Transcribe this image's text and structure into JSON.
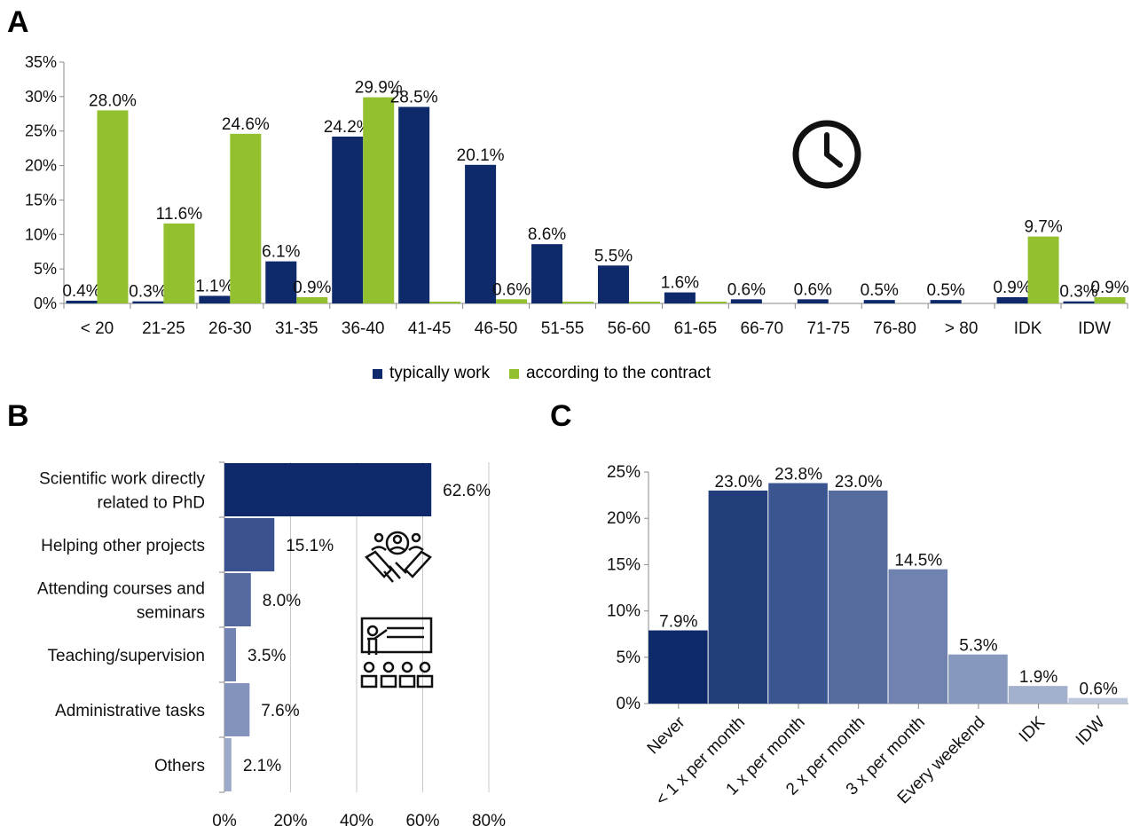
{
  "panels": {
    "a": "A",
    "b": "B",
    "c": "C"
  },
  "colors": {
    "navy": "#0e2a6b",
    "green": "#92c02e"
  },
  "chart_data": [
    {
      "id": "A",
      "type": "bar",
      "categories": [
        "< 20",
        "21-25",
        "26-30",
        "31-35",
        "36-40",
        "41-45",
        "46-50",
        "51-55",
        "56-60",
        "61-65",
        "66-70",
        "71-75",
        "76-80",
        "> 80",
        "IDK",
        "IDW"
      ],
      "series": [
        {
          "name": "typically work",
          "color": "#0e2a6b",
          "values": [
            0.4,
            0.3,
            1.1,
            6.1,
            24.2,
            28.5,
            20.1,
            8.6,
            5.5,
            1.6,
            0.6,
            0.6,
            0.5,
            0.5,
            0.9,
            0.3
          ],
          "labels": [
            "0.4%",
            "0.3%",
            "1.1%",
            "6.1%",
            "24.2%",
            "28.5%",
            "20.1%",
            "8.6%",
            "5.5%",
            "1.6%",
            "0.6%",
            "0.6%",
            "0.5%",
            "0.5%",
            "0.9%",
            "0.3%"
          ]
        },
        {
          "name": "according to the contract",
          "color": "#92c02e",
          "values": [
            28.0,
            11.6,
            24.6,
            0.9,
            29.9,
            0.2,
            0.6,
            0.2,
            0.2,
            0.2,
            0,
            0,
            0,
            0,
            9.7,
            0.9
          ],
          "labels": [
            "28.0%",
            "11.6%",
            "24.6%",
            "0.9%",
            "29.9%",
            "",
            "0.6%",
            "",
            "",
            "",
            "",
            "",
            "",
            "",
            "9.7%",
            "0.9%"
          ]
        }
      ],
      "yticks": [
        "0%",
        "5%",
        "10%",
        "15%",
        "20%",
        "25%",
        "30%",
        "35%"
      ],
      "ylim": [
        0,
        35
      ],
      "icon": "clock-icon"
    },
    {
      "id": "B",
      "type": "bar",
      "orientation": "horizontal",
      "categories": [
        [
          "Scientific work directly",
          "related to PhD"
        ],
        [
          "Helping other projects"
        ],
        [
          "Attending courses and",
          "seminars"
        ],
        [
          "Teaching/supervision"
        ],
        [
          "Administrative tasks"
        ],
        [
          "Others"
        ]
      ],
      "values": [
        62.6,
        15.1,
        8.0,
        3.5,
        7.6,
        2.1
      ],
      "labels": [
        "62.6%",
        "15.1%",
        "8.0%",
        "3.5%",
        "7.6%",
        "2.1%"
      ],
      "colors": [
        "#0e2a6b",
        "#3a5390",
        "#56699f",
        "#7283b1",
        "#8393bb",
        "#9ca9c9"
      ],
      "xticks": [
        "0%",
        "20%",
        "40%",
        "60%",
        "80%"
      ],
      "xlim": [
        0,
        80
      ],
      "icons": [
        "teamwork-handshake-icon",
        "teaching-presentation-icon"
      ]
    },
    {
      "id": "C",
      "type": "bar",
      "categories": [
        "Never",
        "< 1 x per month",
        "1 x per month",
        "2 x per month",
        "3 x per month",
        "Every weekend",
        "IDK",
        "IDW"
      ],
      "values": [
        7.9,
        23.0,
        23.8,
        23.0,
        14.5,
        5.3,
        1.9,
        0.6
      ],
      "labels": [
        "7.9%",
        "23.0%",
        "23.8%",
        "23.0%",
        "14.5%",
        "5.3%",
        "1.9%",
        "0.6%"
      ],
      "colors": [
        "#0e2a6b",
        "#233f7b",
        "#3a5590",
        "#566c9e",
        "#7083b0",
        "#8798be",
        "#a3b0cc",
        "#bdc7dc"
      ],
      "yticks": [
        "0%",
        "5%",
        "10%",
        "15%",
        "20%",
        "25%"
      ],
      "ylim": [
        0,
        25
      ]
    }
  ]
}
